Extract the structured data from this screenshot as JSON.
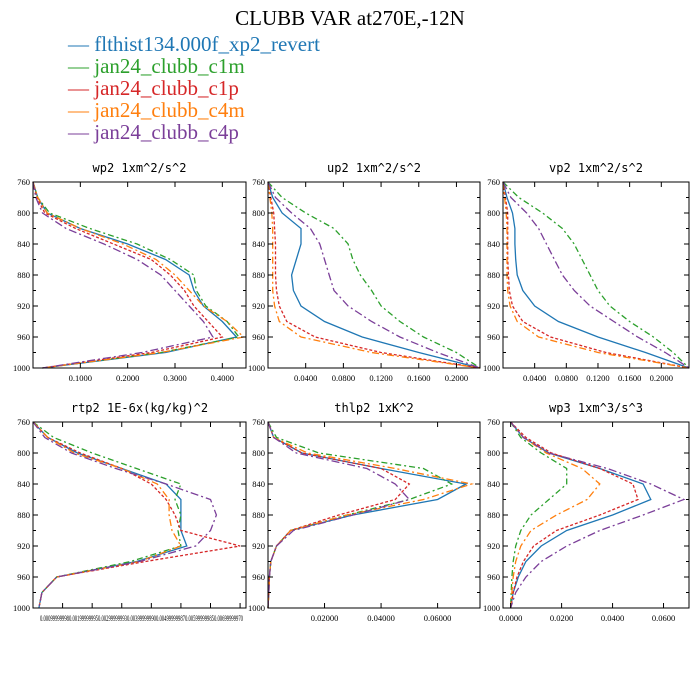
{
  "chart_data": {
    "title": "CLUBB VAR at270E,-12N",
    "series_names": [
      "flthist134.000f_xp2_revert",
      "jan24_clubb_c1m",
      "jan24_clubb_c1p",
      "jan24_clubb_c4m",
      "jan24_clubb_c4p"
    ],
    "colors": [
      "#1f77b4",
      "#2ca02c",
      "#d62728",
      "#ff7f0e",
      "#7b3f99"
    ],
    "y": [
      760,
      780,
      800,
      820,
      840,
      860,
      880,
      900,
      920,
      940,
      960,
      980,
      1000
    ],
    "panels": [
      {
        "type": "line",
        "title": "wp2  1xm^2/s^2",
        "xlim": [
          0,
          0.45
        ],
        "ylim": [
          760,
          1000
        ],
        "xticks": [
          0.1,
          0.2,
          0.3,
          0.4
        ],
        "xtick_labels": [
          "0.1000",
          "0.2000",
          "0.3000",
          "0.4000"
        ],
        "yticks": [
          760,
          800,
          840,
          880,
          920,
          960,
          1000
        ],
        "series": [
          {
            "values": [
              0.0,
              0.01,
              0.03,
              0.1,
              0.2,
              0.28,
              0.33,
              0.34,
              0.36,
              0.4,
              0.43,
              0.28,
              0.02
            ]
          },
          {
            "values": [
              0.0,
              0.01,
              0.035,
              0.12,
              0.22,
              0.29,
              0.34,
              0.345,
              0.365,
              0.41,
              0.435,
              0.27,
              0.02
            ]
          },
          {
            "values": [
              0.0,
              0.008,
              0.025,
              0.09,
              0.17,
              0.25,
              0.29,
              0.32,
              0.34,
              0.37,
              0.4,
              0.25,
              0.02
            ]
          },
          {
            "values": [
              0.0,
              0.01,
              0.03,
              0.1,
              0.19,
              0.26,
              0.3,
              0.33,
              0.36,
              0.41,
              0.445,
              0.27,
              0.02
            ]
          },
          {
            "values": [
              0.0,
              0.006,
              0.02,
              0.07,
              0.15,
              0.22,
              0.27,
              0.3,
              0.33,
              0.36,
              0.38,
              0.23,
              0.02
            ]
          }
        ]
      },
      {
        "type": "line",
        "title": "up2  1xm^2/s^2",
        "xlim": [
          0,
          0.225
        ],
        "ylim": [
          760,
          1000
        ],
        "xticks": [
          0.04,
          0.08,
          0.12,
          0.16,
          0.2
        ],
        "xtick_labels": [
          "0.0400",
          "0.0800",
          "0.1200",
          "0.1600",
          "0.2000"
        ],
        "yticks": [
          760,
          800,
          840,
          880,
          920,
          960,
          1000
        ],
        "series": [
          {
            "values": [
              0.0,
              0.005,
              0.015,
              0.035,
              0.035,
              0.03,
              0.025,
              0.027,
              0.035,
              0.06,
              0.1,
              0.16,
              0.225
            ]
          },
          {
            "values": [
              0.0,
              0.015,
              0.04,
              0.07,
              0.085,
              0.09,
              0.098,
              0.11,
              0.12,
              0.14,
              0.165,
              0.2,
              0.225
            ]
          },
          {
            "values": [
              0.0,
              0.003,
              0.006,
              0.007,
              0.008,
              0.008,
              0.008,
              0.009,
              0.012,
              0.02,
              0.05,
              0.12,
              0.225
            ]
          },
          {
            "values": [
              0.0,
              0.002,
              0.004,
              0.005,
              0.005,
              0.005,
              0.005,
              0.005,
              0.007,
              0.012,
              0.035,
              0.11,
              0.225
            ]
          },
          {
            "values": [
              0.0,
              0.008,
              0.025,
              0.045,
              0.055,
              0.06,
              0.065,
              0.07,
              0.085,
              0.11,
              0.14,
              0.18,
              0.225
            ]
          }
        ]
      },
      {
        "type": "line",
        "title": "vp2  1xm^2/s^2",
        "xlim": [
          0,
          0.235
        ],
        "ylim": [
          760,
          1000
        ],
        "xticks": [
          0.04,
          0.08,
          0.12,
          0.16,
          0.2
        ],
        "xtick_labels": [
          "0.0400",
          "0.0800",
          "0.1200",
          "0.1600",
          "0.2000"
        ],
        "yticks": [
          760,
          800,
          840,
          880,
          920,
          960,
          1000
        ],
        "series": [
          {
            "values": [
              0.0,
              0.005,
              0.012,
              0.015,
              0.015,
              0.016,
              0.018,
              0.025,
              0.04,
              0.07,
              0.12,
              0.18,
              0.235
            ]
          },
          {
            "values": [
              0.0,
              0.02,
              0.05,
              0.075,
              0.09,
              0.1,
              0.11,
              0.12,
              0.135,
              0.16,
              0.19,
              0.215,
              0.235
            ]
          },
          {
            "values": [
              0.0,
              0.003,
              0.006,
              0.006,
              0.006,
              0.006,
              0.007,
              0.008,
              0.012,
              0.025,
              0.06,
              0.13,
              0.235
            ]
          },
          {
            "values": [
              0.0,
              0.002,
              0.004,
              0.005,
              0.005,
              0.005,
              0.005,
              0.006,
              0.009,
              0.018,
              0.045,
              0.12,
              0.235
            ]
          },
          {
            "values": [
              0.0,
              0.01,
              0.03,
              0.045,
              0.055,
              0.065,
              0.075,
              0.09,
              0.11,
              0.14,
              0.17,
              0.205,
              0.235
            ]
          }
        ]
      },
      {
        "type": "line",
        "title": "rtp2  1E-6x(kg/kg)^2",
        "xlim": [
          0,
          7.2e-06
        ],
        "ylim": [
          760,
          1000
        ],
        "xticks": [
          1e-06,
          2e-06,
          3e-06,
          4e-06,
          5e-06,
          6e-06,
          7e-06
        ],
        "xtick_labels": [
          "0.000999999",
          "0.00199999",
          "0.00300000",
          "0.00400000",
          "0.00499999",
          "0.00599999",
          "0.00699999"
        ],
        "xtick_label_text": "0.000999999980.001999999950.002999999930.003999999900.004999999870.005999999850.00699999970",
        "yticks": [
          760,
          800,
          840,
          880,
          920,
          960,
          1000
        ],
        "series": [
          {
            "values": [
              0.0,
              5e-07,
              1.5e-06,
              3e-06,
              4.5e-06,
              5e-06,
              5e-06,
              5e-06,
              5.2e-06,
              3.5e-06,
              8e-07,
              3e-07,
              2e-07
            ]
          },
          {
            "values": [
              0.0,
              7e-07,
              2e-06,
              3.5e-06,
              5e-06,
              4.8e-06,
              5e-06,
              4.9e-06,
              5e-06,
              3.3e-06,
              8e-07,
              3e-07,
              2e-07
            ]
          },
          {
            "values": [
              0.0,
              5e-07,
              1.6e-06,
              3e-06,
              4e-06,
              4.5e-06,
              4.8e-06,
              5e-06,
              7e-06,
              3.8e-06,
              8e-07,
              3e-07,
              2e-07
            ]
          },
          {
            "values": [
              0.0,
              5e-07,
              1.4e-06,
              3e-06,
              4.2e-06,
              4.6e-06,
              4.6e-06,
              4.7e-06,
              5e-06,
              3.6e-06,
              8e-07,
              3e-07,
              2e-07
            ]
          },
          {
            "values": [
              0.0,
              4e-07,
              1.3e-06,
              2.8e-06,
              4.5e-06,
              6e-06,
              6.2e-06,
              6e-06,
              5.5e-06,
              3.6e-06,
              8e-07,
              3e-07,
              2e-07
            ]
          }
        ]
      },
      {
        "type": "line",
        "title": "thlp2  1xK^2",
        "xlim": [
          0,
          0.075
        ],
        "ylim": [
          760,
          1000
        ],
        "xticks": [
          0.02,
          0.04,
          0.06
        ],
        "xtick_labels": [
          "0.02000",
          "0.04000",
          "0.06000"
        ],
        "yticks": [
          760,
          800,
          840,
          880,
          920,
          960,
          1000
        ],
        "series": [
          {
            "values": [
              0.0,
              0.002,
              0.012,
              0.04,
              0.07,
              0.06,
              0.03,
              0.008,
              0.003,
              0.001,
              0.0005,
              0.0003,
              0.0
            ]
          },
          {
            "values": [
              0.0,
              0.003,
              0.018,
              0.055,
              0.065,
              0.05,
              0.028,
              0.008,
              0.003,
              0.001,
              0.0005,
              0.0003,
              0.0
            ]
          },
          {
            "values": [
              0.0,
              0.002,
              0.012,
              0.04,
              0.05,
              0.045,
              0.025,
              0.008,
              0.003,
              0.001,
              0.0005,
              0.0003,
              0.0
            ]
          },
          {
            "values": [
              0.0,
              0.002,
              0.014,
              0.045,
              0.072,
              0.055,
              0.028,
              0.008,
              0.003,
              0.001,
              0.0005,
              0.0003,
              0.0
            ]
          },
          {
            "values": [
              0.0,
              0.002,
              0.01,
              0.035,
              0.045,
              0.05,
              0.03,
              0.009,
              0.003,
              0.001,
              0.0005,
              0.0003,
              0.0
            ]
          }
        ]
      },
      {
        "type": "line",
        "title": "wp3  1xm^3/s^3",
        "xlim": [
          -0.003,
          0.07
        ],
        "ylim": [
          760,
          1000
        ],
        "xticks": [
          0.0,
          0.02,
          0.04,
          0.06
        ],
        "xtick_labels": [
          "0.0000",
          "0.0200",
          "0.0400",
          "0.0600"
        ],
        "yticks": [
          760,
          800,
          840,
          880,
          920,
          960,
          1000
        ],
        "series": [
          {
            "values": [
              0.0,
              0.005,
              0.015,
              0.035,
              0.052,
              0.055,
              0.04,
              0.022,
              0.012,
              0.006,
              0.003,
              0.001,
              0.0
            ]
          },
          {
            "values": [
              0.0,
              0.004,
              0.012,
              0.022,
              0.022,
              0.015,
              0.008,
              0.004,
              0.002,
              0.001,
              0.0005,
              0.0002,
              0.0
            ]
          },
          {
            "values": [
              0.0,
              0.006,
              0.016,
              0.035,
              0.048,
              0.05,
              0.035,
              0.018,
              0.009,
              0.005,
              0.0025,
              0.001,
              0.0
            ]
          },
          {
            "values": [
              0.0,
              0.005,
              0.014,
              0.028,
              0.035,
              0.03,
              0.018,
              0.008,
              0.004,
              0.002,
              0.001,
              0.0005,
              0.0
            ]
          },
          {
            "values": [
              0.0,
              0.005,
              0.015,
              0.038,
              0.055,
              0.068,
              0.052,
              0.035,
              0.022,
              0.012,
              0.006,
              0.002,
              0.0
            ]
          }
        ]
      }
    ]
  }
}
